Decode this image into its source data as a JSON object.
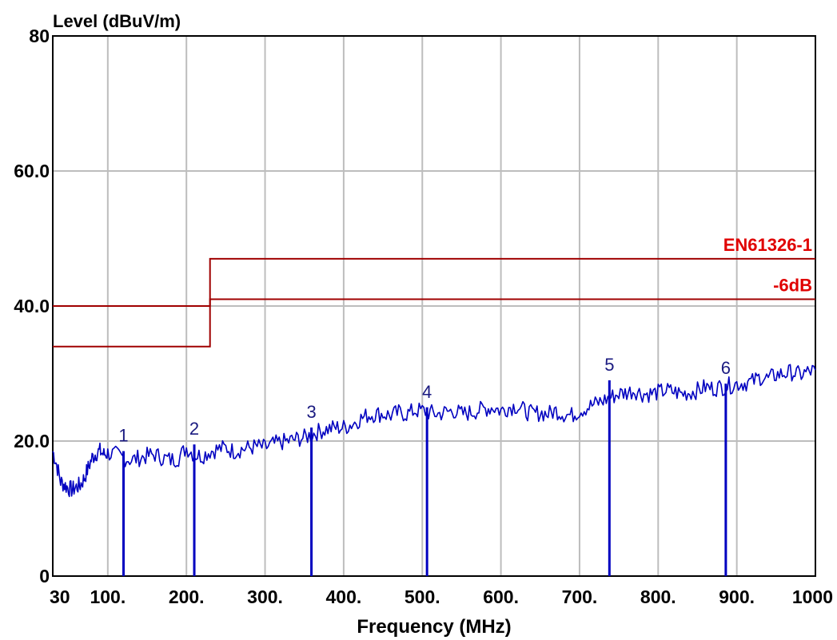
{
  "chart_data": {
    "type": "line",
    "ylabel": "Level (dBuV/m)",
    "xlabel": "Frequency (MHz)",
    "xlim": [
      30,
      1000
    ],
    "ylim": [
      0,
      80
    ],
    "grid": true,
    "x_ticks": [
      {
        "value": 30,
        "label": "30"
      },
      {
        "value": 100,
        "label": "100."
      },
      {
        "value": 200,
        "label": "200."
      },
      {
        "value": 300,
        "label": "300."
      },
      {
        "value": 400,
        "label": "400."
      },
      {
        "value": 500,
        "label": "500."
      },
      {
        "value": 600,
        "label": "600."
      },
      {
        "value": 700,
        "label": "700."
      },
      {
        "value": 800,
        "label": "800."
      },
      {
        "value": 900,
        "label": "900."
      },
      {
        "value": 1000,
        "label": "1000"
      }
    ],
    "y_ticks": [
      {
        "value": 0,
        "label": "0"
      },
      {
        "value": 20,
        "label": "20.0"
      },
      {
        "value": 40,
        "label": "40.0"
      },
      {
        "value": 60,
        "label": "60.0"
      },
      {
        "value": 80,
        "label": "80"
      }
    ],
    "limit_lines": [
      {
        "name": "EN61326-1",
        "color": "#a00000",
        "label_color": "#e00000",
        "points": [
          [
            30,
            40
          ],
          [
            230,
            40
          ],
          [
            230,
            47
          ],
          [
            1000,
            47
          ]
        ]
      },
      {
        "name": "-6dB",
        "color": "#a00000",
        "label_color": "#e00000",
        "points": [
          [
            30,
            34
          ],
          [
            230,
            34
          ],
          [
            230,
            41
          ],
          [
            1000,
            41
          ]
        ]
      }
    ],
    "series": [
      {
        "color": "#0000c0",
        "x": [
          30,
          35,
          40,
          45,
          50,
          55,
          60,
          65,
          70,
          75,
          80,
          85,
          90,
          95,
          100,
          110,
          120,
          130,
          140,
          150,
          160,
          170,
          180,
          190,
          200,
          210,
          220,
          230,
          240,
          250,
          260,
          270,
          280,
          290,
          300,
          310,
          320,
          330,
          340,
          350,
          360,
          370,
          380,
          390,
          400,
          410,
          420,
          430,
          440,
          450,
          460,
          470,
          480,
          490,
          500,
          510,
          520,
          530,
          540,
          550,
          560,
          570,
          580,
          590,
          600,
          610,
          620,
          630,
          640,
          650,
          660,
          670,
          680,
          690,
          700,
          710,
          720,
          730,
          740,
          750,
          760,
          770,
          780,
          790,
          800,
          810,
          820,
          830,
          840,
          850,
          860,
          870,
          880,
          890,
          900,
          910,
          920,
          930,
          940,
          950,
          960,
          970,
          980,
          990,
          1000
        ],
        "values": [
          18.5,
          16.5,
          14,
          13.5,
          13,
          12.8,
          13.2,
          13.5,
          14.5,
          16,
          17.5,
          18.2,
          18.5,
          18,
          18.2,
          18,
          17.5,
          17.2,
          17.5,
          17.8,
          18,
          17.5,
          17.2,
          17.5,
          19,
          18,
          17.8,
          18.5,
          18.8,
          19,
          18.5,
          18.8,
          19,
          19.2,
          19,
          19.5,
          19.8,
          20,
          20.3,
          20.5,
          21,
          21.5,
          21.8,
          22,
          22,
          22.5,
          23.2,
          23.8,
          24,
          24,
          23.8,
          24.2,
          24,
          24.5,
          24.5,
          24.2,
          24,
          24.3,
          24.5,
          24,
          24.2,
          24.5,
          24.8,
          25,
          24.5,
          25,
          25.2,
          24.5,
          24,
          24.2,
          24,
          24.5,
          24,
          23.8,
          24.5,
          25,
          25.5,
          26,
          26.5,
          27,
          27.2,
          27.5,
          27,
          27,
          27.2,
          27.5,
          27.3,
          27,
          27.2,
          27.5,
          28,
          27.8,
          28,
          28.2,
          28.5,
          28.6,
          28.8,
          29.5,
          29.2,
          29.8,
          30,
          30.2,
          29.8,
          30.2,
          30.5
        ]
      }
    ],
    "markers": [
      {
        "label": "1",
        "x": 120,
        "value": 18.5
      },
      {
        "label": "2",
        "x": 210,
        "value": 19.5
      },
      {
        "label": "3",
        "x": 359,
        "value": 22
      },
      {
        "label": "4",
        "x": 506,
        "value": 25
      },
      {
        "label": "5",
        "x": 738,
        "value": 29
      },
      {
        "label": "6",
        "x": 886,
        "value": 28.5
      }
    ]
  }
}
